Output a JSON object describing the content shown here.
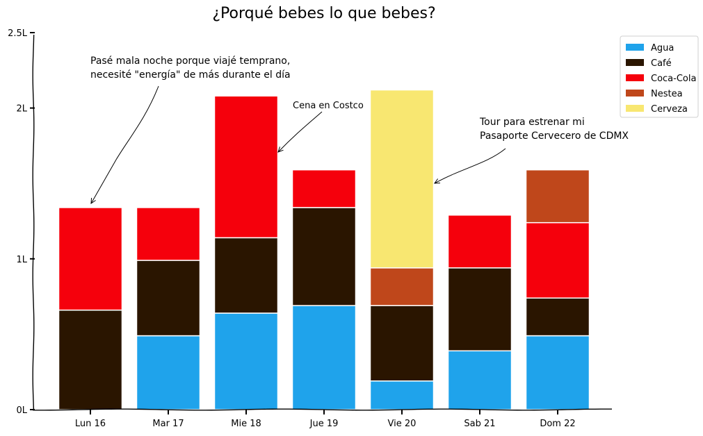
{
  "chart_data": {
    "type": "bar",
    "stacked": true,
    "title": "¿Porqué bebes lo que bebes?",
    "xlabel": "",
    "ylabel": "",
    "categories": [
      "Lun 16",
      "Mar 17",
      "Mie 18",
      "Jue 19",
      "Vie 20",
      "Sab 21",
      "Dom 22"
    ],
    "y_ticks": [
      {
        "value": 0,
        "label": "0L"
      },
      {
        "value": 1,
        "label": "1L"
      },
      {
        "value": 2,
        "label": "2L"
      },
      {
        "value": 2.5,
        "label": "2.5L"
      }
    ],
    "ylim": [
      0,
      2.5
    ],
    "grid": false,
    "legend_position": "top-right",
    "series": [
      {
        "name": "Agua",
        "color": "#1fa3eb",
        "values": [
          0,
          0.49,
          0.64,
          0.69,
          0.19,
          0.39,
          0.49
        ]
      },
      {
        "name": "Café",
        "color": "#2a1500",
        "values": [
          0.66,
          0.5,
          0.5,
          0.65,
          0.5,
          0.55,
          0.25
        ]
      },
      {
        "name": "Coca-Cola",
        "color": "#f5000c",
        "values": [
          0.68,
          0.35,
          0.94,
          0.25,
          0,
          0.35,
          0.5
        ]
      },
      {
        "name": "Nestea",
        "color": "#bf471b",
        "values": [
          0,
          0,
          0,
          0,
          0.25,
          0,
          0.35
        ]
      },
      {
        "name": "Cerveza",
        "color": "#f8e771",
        "values": [
          0,
          0,
          0,
          0,
          1.18,
          0,
          0
        ]
      }
    ],
    "annotations": [
      {
        "lines": [
          "Pasé mala noche porque viajé temprano,",
          "necesité \"energía\" de más durante el día"
        ],
        "target_category": "Lun 16",
        "target_value": 1.36,
        "size": "normal"
      },
      {
        "lines": [
          "Cena en Costco"
        ],
        "target_category": "Mie 18",
        "target_value": 1.7,
        "size": "small"
      },
      {
        "lines": [
          "Tour para estrenar mi",
          "Pasaporte Cervecero de CDMX"
        ],
        "target_category": "Vie 20",
        "target_value": 1.5,
        "size": "normal"
      }
    ]
  }
}
